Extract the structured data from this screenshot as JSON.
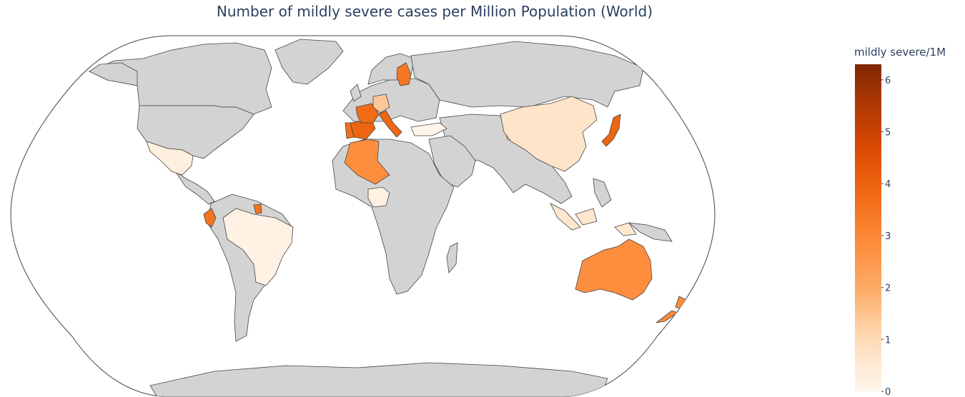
{
  "title": "Number of mildly severe cases per Million Population (World)",
  "chart_data": {
    "type": "choropleth",
    "projection": "robinson",
    "scope": "world",
    "land_color": "#d3d3d3",
    "border_color": "#444444",
    "colorbar": {
      "title": "mildly severe/1M",
      "range": [
        0,
        6.3
      ],
      "ticks": [
        "0",
        "1",
        "2",
        "3",
        "4",
        "5",
        "6"
      ],
      "colorscale": [
        [
          0.0,
          "#fff5eb"
        ],
        [
          0.1,
          "#fee6ce"
        ],
        [
          0.2,
          "#fdd0a2"
        ],
        [
          0.3,
          "#fdae6b"
        ],
        [
          0.45,
          "#fd8d3c"
        ],
        [
          0.6,
          "#f16913"
        ],
        [
          0.75,
          "#d94801"
        ],
        [
          0.9,
          "#a63603"
        ],
        [
          1.0,
          "#7f2704"
        ]
      ]
    },
    "countries": [
      {
        "name": "Canada",
        "value": null
      },
      {
        "name": "United States",
        "value": null
      },
      {
        "name": "Mexico",
        "value": 0.25
      },
      {
        "name": "Brazil",
        "value": 0.15
      },
      {
        "name": "Ecuador",
        "value": 3.5
      },
      {
        "name": "French Guiana",
        "value": 3.5
      },
      {
        "name": "Algeria",
        "value": 2.8
      },
      {
        "name": "Nigeria",
        "value": 0.2
      },
      {
        "name": "Spain",
        "value": 3.9
      },
      {
        "name": "Portugal",
        "value": 3.6
      },
      {
        "name": "France",
        "value": 3.7
      },
      {
        "name": "Italy",
        "value": 3.8
      },
      {
        "name": "Germany",
        "value": 1.4
      },
      {
        "name": "Finland",
        "value": 3.4
      },
      {
        "name": "Turkey",
        "value": 0.05
      },
      {
        "name": "China",
        "value": 0.7
      },
      {
        "name": "Japan",
        "value": 3.9
      },
      {
        "name": "Australia",
        "value": 2.8
      },
      {
        "name": "New Zealand",
        "value": 2.9
      },
      {
        "name": "Indonesia",
        "value": 0.6
      },
      {
        "name": "Papua New Guinea",
        "value": 0.3
      }
    ]
  }
}
